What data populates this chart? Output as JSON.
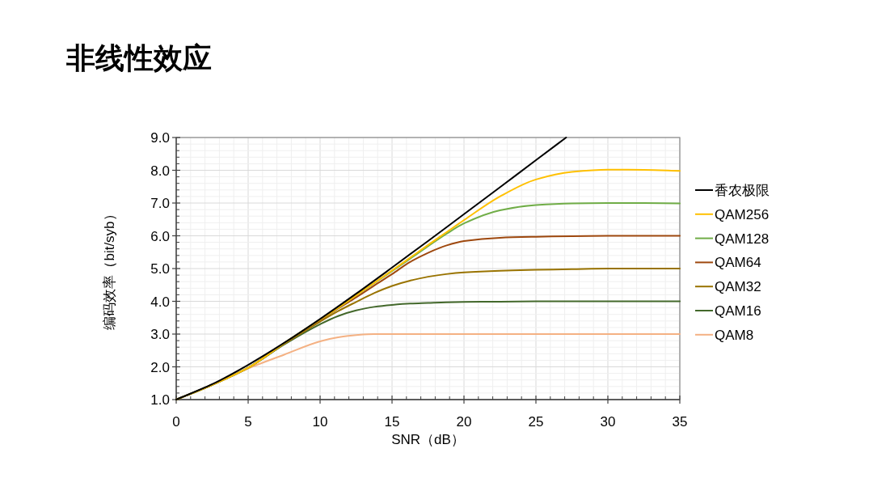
{
  "chart_data": {
    "type": "line",
    "title": "非线性效应",
    "xlabel": "SNR（dB）",
    "ylabel": "编码效率（bit/syb）",
    "x": [
      0,
      2.5,
      5,
      7.5,
      10,
      11.25,
      12.5,
      13.75,
      15,
      16.25,
      17.5,
      18.75,
      20,
      22.5,
      25,
      27.5,
      30,
      32.5,
      35
    ],
    "series": [
      {
        "name": "香农极限",
        "color": "#000000",
        "x": [
          0,
          2.5,
          5,
          7.5,
          10,
          12.5,
          15,
          17.5,
          20,
          22.5,
          25,
          27.1
        ],
        "values": [
          1.0,
          1.47,
          2.06,
          2.73,
          3.46,
          4.23,
          5.03,
          5.84,
          6.66,
          7.48,
          8.31,
          9.0
        ]
      },
      {
        "name": "QAM256",
        "color": "#ffc000",
        "values": [
          1.0,
          1.45,
          1.97,
          2.72,
          3.44,
          3.8,
          4.18,
          4.56,
          4.94,
          5.33,
          5.72,
          6.1,
          6.48,
          7.2,
          7.72,
          7.95,
          8.02,
          8.01,
          7.98
        ]
      },
      {
        "name": "QAM128",
        "color": "#70ad47",
        "values": [
          1.0,
          1.45,
          1.97,
          2.72,
          3.44,
          3.8,
          4.18,
          4.55,
          4.92,
          5.3,
          5.68,
          6.05,
          6.38,
          6.78,
          6.94,
          6.99,
          7.0,
          7.0,
          6.99
        ]
      },
      {
        "name": "QAM64",
        "color": "#9e480e",
        "values": [
          1.0,
          1.45,
          1.97,
          2.72,
          3.42,
          3.78,
          4.12,
          4.48,
          4.83,
          5.2,
          5.48,
          5.7,
          5.84,
          5.94,
          5.97,
          5.99,
          6.0,
          6.0,
          6.0
        ]
      },
      {
        "name": "QAM32",
        "color": "#997300",
        "values": [
          1.0,
          1.45,
          1.97,
          2.7,
          3.38,
          3.7,
          3.98,
          4.25,
          4.47,
          4.63,
          4.75,
          4.83,
          4.88,
          4.93,
          4.96,
          4.98,
          5.0,
          5.0,
          5.0
        ]
      },
      {
        "name": "QAM16",
        "color": "#43682b",
        "values": [
          1.0,
          1.45,
          1.97,
          2.68,
          3.3,
          3.55,
          3.72,
          3.83,
          3.89,
          3.93,
          3.95,
          3.97,
          3.98,
          3.99,
          4.0,
          4.0,
          4.0,
          4.0,
          4.0
        ]
      },
      {
        "name": "QAM8",
        "color": "#f4b183",
        "values": [
          1.0,
          1.45,
          1.95,
          2.37,
          2.78,
          2.9,
          2.97,
          3.0,
          3.0,
          3.0,
          3.0,
          3.0,
          3.0,
          3.0,
          3.0,
          3.0,
          3.0,
          3.0,
          3.0
        ]
      }
    ],
    "xlim": [
      0,
      35
    ],
    "ylim": [
      1,
      9
    ],
    "xticks": [
      0,
      5,
      10,
      15,
      20,
      25,
      30,
      35
    ],
    "yticks": [
      {
        "value": 1,
        "label": "1.0"
      },
      {
        "value": 2,
        "label": "2.0"
      },
      {
        "value": 3,
        "label": "3.0"
      },
      {
        "value": 4,
        "label": "4.0"
      },
      {
        "value": 5,
        "label": "5.0"
      },
      {
        "value": 6,
        "label": "6.0"
      },
      {
        "value": 7,
        "label": "7.0"
      },
      {
        "value": 8,
        "label": "8.0"
      },
      {
        "value": 9,
        "label": "9.0"
      }
    ],
    "grid": true,
    "legend": "right"
  }
}
